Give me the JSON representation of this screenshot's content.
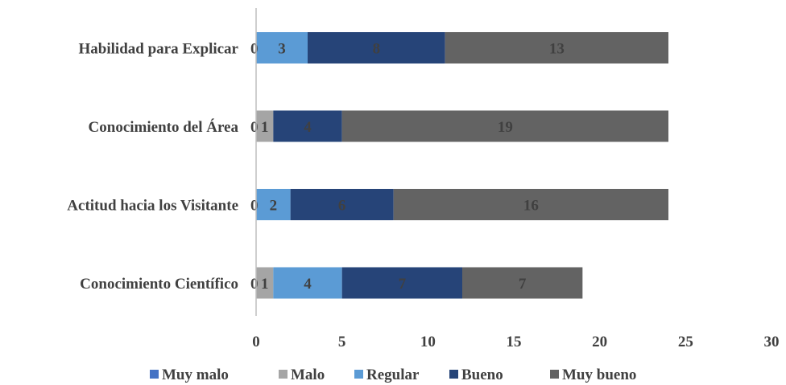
{
  "chart_data": {
    "type": "bar",
    "orientation": "horizontal",
    "stacked": true,
    "categories": [
      "Habilidad para Explicar",
      "Conocimiento del Área",
      "Actitud hacia los Visitante",
      "Conocimiento Científico"
    ],
    "series": [
      {
        "name": "Muy malo",
        "color": "#4472C4",
        "values": [
          0,
          0,
          0,
          0
        ]
      },
      {
        "name": "Malo",
        "color": "#A5A5A5",
        "values": [
          0,
          1,
          0,
          1
        ]
      },
      {
        "name": "Regular",
        "color": "#5B9BD5",
        "values": [
          3,
          0,
          2,
          4
        ]
      },
      {
        "name": "Bueno",
        "color": "#264478",
        "values": [
          8,
          4,
          6,
          7
        ]
      },
      {
        "name": "Muy bueno",
        "color": "#636363",
        "values": [
          13,
          19,
          16,
          7
        ]
      }
    ],
    "segment_labels": [
      [
        "0",
        "",
        "3",
        "8",
        "13"
      ],
      [
        "0",
        "1",
        "",
        "4",
        "19"
      ],
      [
        "0",
        "",
        "2",
        "6",
        "16"
      ],
      [
        "0",
        "1",
        "4",
        "7",
        "7"
      ]
    ],
    "xticks": [
      "0",
      "5",
      "10",
      "15",
      "20",
      "25",
      "30"
    ],
    "xlim": [
      0,
      30
    ],
    "grid": false,
    "legend_position": "bottom"
  }
}
